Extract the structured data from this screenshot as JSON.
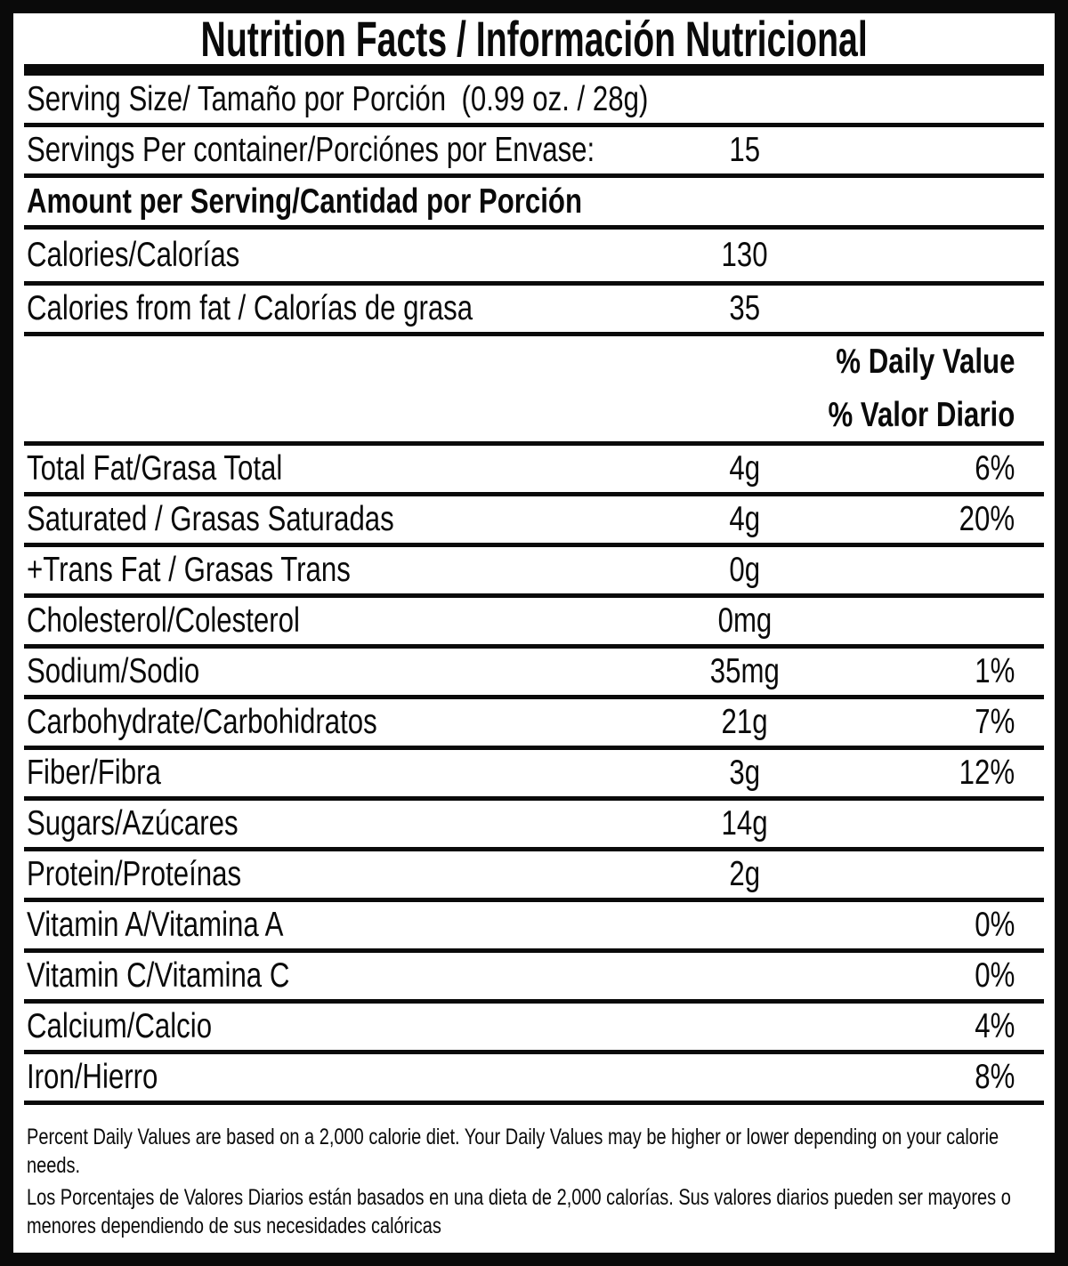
{
  "title": "Nutrition Facts / Información Nutricional",
  "serving": {
    "size_label": "Serving Size/ Tamaño por Porción  (0.99 oz. / 28g)",
    "per_container_label": "Servings Per container/Porciónes por Envase:",
    "per_container_value": "15"
  },
  "amount_header": "Amount per Serving/Cantidad por Porción",
  "calories": {
    "label": "Calories/Calorías",
    "value": "130"
  },
  "calories_from_fat": {
    "label": "Calories from fat / Calorías de grasa",
    "value": "35"
  },
  "daily_value_header": {
    "line1": "% Daily Value",
    "line2": "% Valor Diario"
  },
  "nutrients": [
    {
      "label": "Total Fat/Grasa Total",
      "amount": "4g",
      "dv": "6%"
    },
    {
      "label": "Saturated / Grasas Saturadas",
      "amount": "4g",
      "dv": "20%"
    },
    {
      "label": "+Trans Fat / Grasas Trans",
      "amount": "0g",
      "dv": ""
    },
    {
      "label": "Cholesterol/Colesterol",
      "amount": "0mg",
      "dv": ""
    },
    {
      "label": "Sodium/Sodio",
      "amount": "35mg",
      "dv": "1%"
    },
    {
      "label": "Carbohydrate/Carbohidratos",
      "amount": "21g",
      "dv": "7%"
    },
    {
      "label": "Fiber/Fibra",
      "amount": "3g",
      "dv": "12%"
    },
    {
      "label": "Sugars/Azúcares",
      "amount": "14g",
      "dv": ""
    },
    {
      "label": "Protein/Proteínas",
      "amount": "2g",
      "dv": ""
    },
    {
      "label": "Vitamin A/Vitamina A",
      "amount": "",
      "dv": "0%"
    },
    {
      "label": "Vitamin C/Vitamina C",
      "amount": "",
      "dv": "0%"
    },
    {
      "label": "Calcium/Calcio",
      "amount": "",
      "dv": "4%"
    },
    {
      "label": "Iron/Hierro",
      "amount": "",
      "dv": "8%"
    }
  ],
  "footnotes": {
    "en": "Percent Daily Values are based on a 2,000 calorie diet. Your Daily Values may be higher or lower depending on your calorie needs.",
    "es": "Los Porcentajes de Valores Diarios están basados en una dieta de 2,000 calorías. Sus valores diarios pueden ser mayores o menores dependiendo de sus necesidades calóricas"
  },
  "colors": {
    "ink": "#0a0a0a",
    "background": "#ffffff"
  }
}
